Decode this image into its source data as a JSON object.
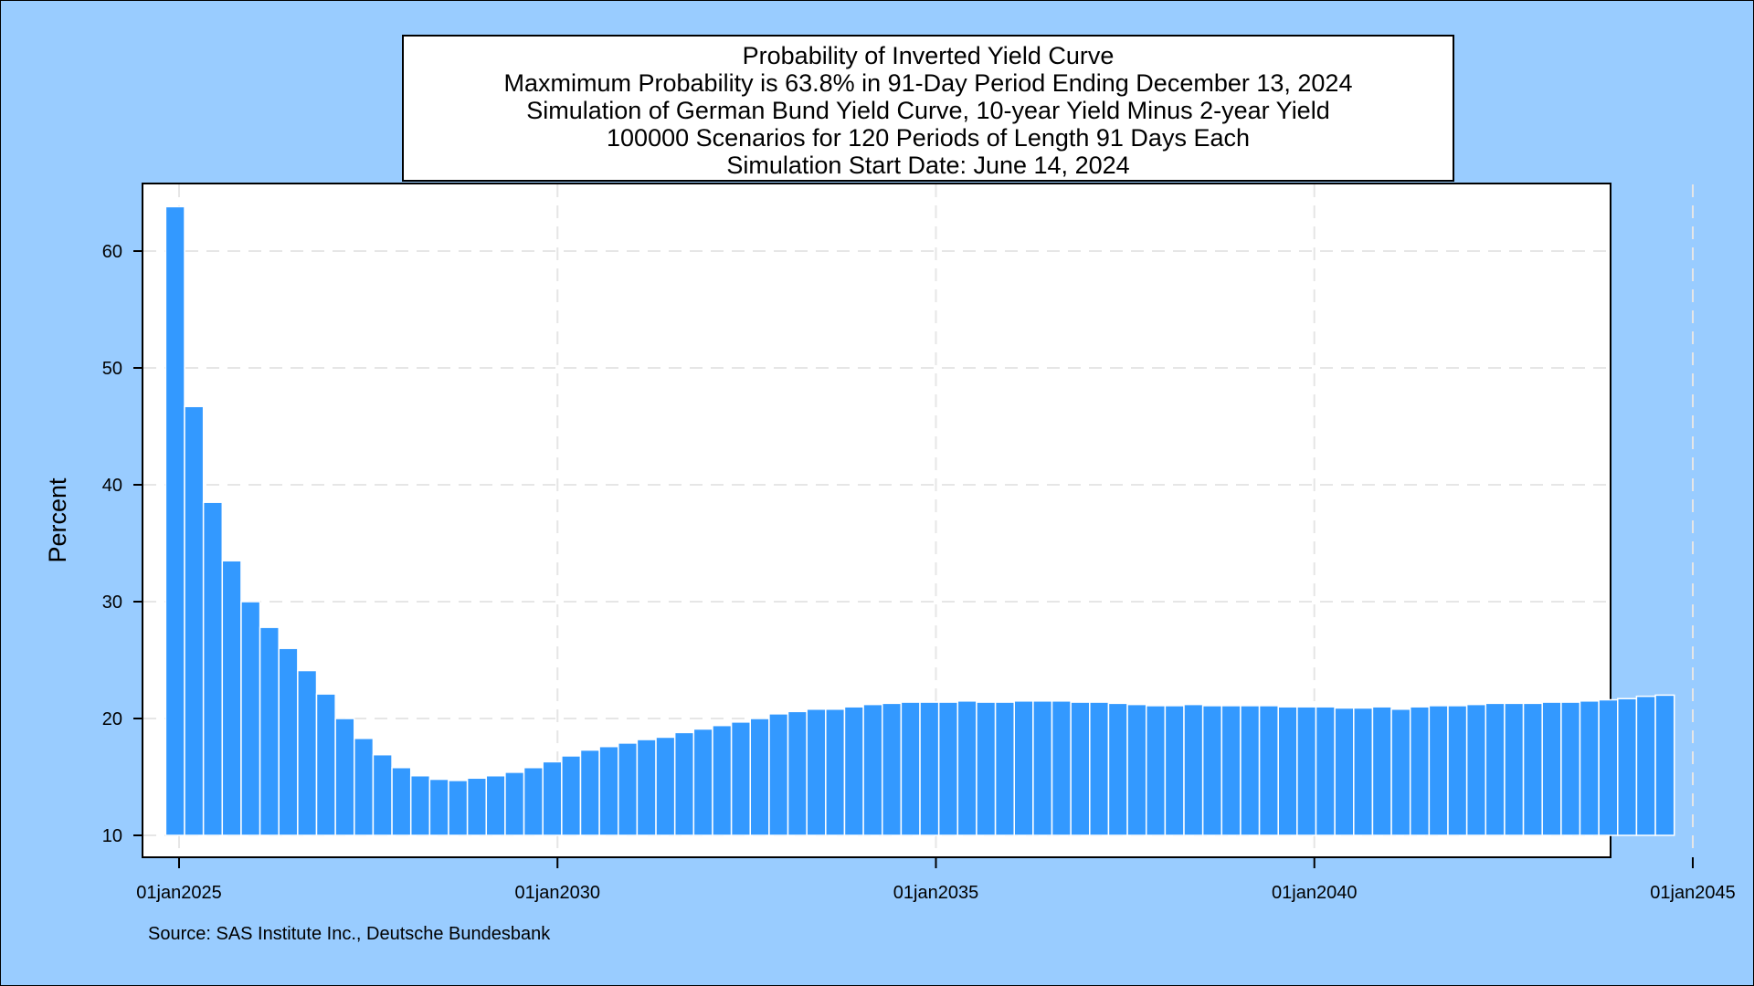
{
  "title_lines": [
    "Probability of Inverted Yield Curve",
    "Maxmimum Probability is 63.8% in 91-Day Period Ending December 13, 2024",
    "Simulation of German Bund Yield Curve, 10-year Yield Minus 2-year Yield",
    "100000 Scenarios for 120 Periods of Length 91 Days Each",
    "Simulation Start Date: June 14, 2024"
  ],
  "source": "Source: SAS Institute Inc., Deutsche Bundesbank",
  "colors": {
    "bar": "#3399ff",
    "bar_edge": "#ffffff",
    "background": "#99ccff",
    "grid": "#e6e6e6"
  },
  "chart_data": {
    "type": "bar",
    "title": "Probability of Inverted Yield Curve",
    "ylabel": "Percent",
    "xlabel": "",
    "ylim": [
      10,
      65
    ],
    "yticks": [
      10,
      20,
      30,
      40,
      50,
      60
    ],
    "xticks": [
      "01jan2025",
      "01jan2030",
      "01jan2035",
      "01jan2040",
      "01jan2045"
    ],
    "xlim": [
      "2024-12-01",
      "2045-01-01"
    ],
    "grid": true,
    "bar_width_days": 91,
    "x": [
      "2024-12-13",
      "2025-03-14",
      "2025-06-13",
      "2025-09-12",
      "2025-12-12",
      "2026-03-13",
      "2026-06-12",
      "2026-09-11",
      "2026-12-11",
      "2027-03-12",
      "2027-06-11",
      "2027-09-10",
      "2027-12-10",
      "2028-03-10",
      "2028-06-09",
      "2028-09-08",
      "2028-12-08",
      "2029-03-09",
      "2029-06-08",
      "2029-09-07",
      "2029-12-07",
      "2030-03-08",
      "2030-06-07",
      "2030-09-06",
      "2030-12-06",
      "2031-03-07",
      "2031-06-06",
      "2031-09-05",
      "2031-12-05",
      "2032-03-05",
      "2032-06-04",
      "2032-09-03",
      "2032-12-03",
      "2033-03-04",
      "2033-06-03",
      "2033-09-02",
      "2033-12-02",
      "2034-03-03",
      "2034-06-02",
      "2034-09-01",
      "2034-12-01",
      "2035-03-02",
      "2035-06-01",
      "2035-08-31",
      "2035-11-30",
      "2036-02-29",
      "2036-05-30",
      "2036-08-29",
      "2036-11-28",
      "2037-02-27",
      "2037-05-29",
      "2037-08-28",
      "2037-11-27",
      "2038-02-26",
      "2038-05-28",
      "2038-08-27",
      "2038-11-26",
      "2039-02-25",
      "2039-05-27",
      "2039-08-26",
      "2039-11-25",
      "2040-02-24",
      "2040-05-25",
      "2040-08-24",
      "2040-11-23",
      "2041-02-22",
      "2041-05-24",
      "2041-08-23",
      "2041-11-22",
      "2042-02-21",
      "2042-05-23",
      "2042-08-22",
      "2042-11-21",
      "2043-02-20",
      "2043-05-22",
      "2043-08-21",
      "2043-11-20",
      "2044-02-19",
      "2044-05-20",
      "2044-08-19"
    ],
    "values": [
      63.8,
      46.7,
      38.5,
      33.5,
      30.0,
      27.8,
      26.0,
      24.1,
      22.1,
      20.0,
      18.3,
      16.9,
      15.8,
      15.1,
      14.8,
      14.7,
      14.9,
      15.1,
      15.4,
      15.8,
      16.3,
      16.8,
      17.3,
      17.6,
      17.9,
      18.2,
      18.4,
      18.8,
      19.1,
      19.4,
      19.7,
      20.0,
      20.4,
      20.6,
      20.8,
      20.8,
      21.0,
      21.2,
      21.3,
      21.4,
      21.4,
      21.4,
      21.5,
      21.4,
      21.4,
      21.5,
      21.5,
      21.5,
      21.4,
      21.4,
      21.3,
      21.2,
      21.1,
      21.1,
      21.2,
      21.1,
      21.1,
      21.1,
      21.1,
      21.0,
      21.0,
      21.0,
      20.9,
      20.9,
      21.0,
      20.8,
      21.0,
      21.1,
      21.1,
      21.2,
      21.3,
      21.3,
      21.3,
      21.4,
      21.4,
      21.5,
      21.6,
      21.7,
      21.9,
      22.0
    ]
  }
}
